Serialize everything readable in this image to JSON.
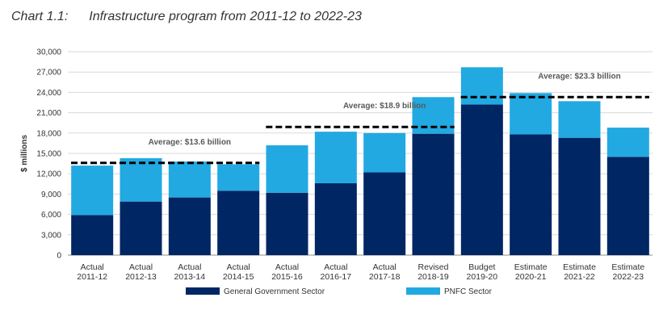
{
  "title": {
    "prefix": "Chart 1.1:",
    "text": "Infrastructure program from 2011-12 to 2022-23"
  },
  "chart_data": {
    "type": "bar",
    "stacked": true,
    "categories": [
      [
        "Actual",
        "2011-12"
      ],
      [
        "Actual",
        "2012-13"
      ],
      [
        "Actual",
        "2013-14"
      ],
      [
        "Actual",
        "2014-15"
      ],
      [
        "Actual",
        "2015-16"
      ],
      [
        "Actual",
        "2016-17"
      ],
      [
        "Actual",
        "2017-18"
      ],
      [
        "Revised",
        "2018-19"
      ],
      [
        "Budget",
        "2019-20"
      ],
      [
        "Estimate",
        "2020-21"
      ],
      [
        "Estimate",
        "2021-22"
      ],
      [
        "Estimate",
        "2022-23"
      ]
    ],
    "series": [
      {
        "name": "General Government Sector",
        "color": "#002664",
        "values": [
          5900,
          7900,
          8500,
          9500,
          9200,
          10600,
          12200,
          17900,
          22200,
          17800,
          17300,
          14500
        ]
      },
      {
        "name": "PNFC Sector",
        "color": "#22A9E1",
        "values": [
          7300,
          6400,
          5300,
          3900,
          7000,
          7600,
          5800,
          5400,
          5500,
          6100,
          5400,
          4300
        ]
      }
    ],
    "ylabel": "$ millions",
    "ylim": [
      0,
      30000
    ],
    "yticks": [
      0,
      3000,
      6000,
      9000,
      12000,
      15000,
      18000,
      21000,
      24000,
      27000,
      30000
    ],
    "averages": [
      {
        "label": "Average: $13.6 billion",
        "value": 13600,
        "from": 0,
        "to": 3
      },
      {
        "label": "Average: $18.9 billion",
        "value": 18900,
        "from": 4,
        "to": 7
      },
      {
        "label": "Average: $23.3 billion",
        "value": 23300,
        "from": 8,
        "to": 11
      }
    ],
    "grid": true,
    "legend": "bottom"
  }
}
